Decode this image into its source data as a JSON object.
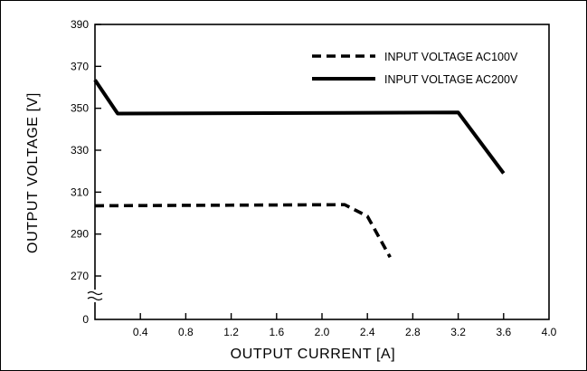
{
  "chart_data": {
    "type": "line",
    "xlabel": "OUTPUT CURRENT [A]",
    "ylabel": "OUTPUT VOLTAGE [V]",
    "xlim": [
      0,
      4.0
    ],
    "ylim": [
      260,
      390
    ],
    "x_ticks": [
      "0.4",
      "0.8",
      "1.2",
      "1.6",
      "2.0",
      "2.4",
      "2.8",
      "3.2",
      "3.6",
      "4.0"
    ],
    "y_ticks": [
      "390",
      "370",
      "350",
      "330",
      "310",
      "290",
      "270"
    ],
    "y_origin_label": "0",
    "y_axis_break": true,
    "grid": false,
    "legend_position": "top-right",
    "series": [
      {
        "name": "INPUT VOLTAGE AC100V",
        "style": "dashed",
        "x": [
          0,
          2.2,
          2.4,
          2.6
        ],
        "y": [
          303.5,
          304,
          298.5,
          279
        ]
      },
      {
        "name": "INPUT VOLTAGE AC200V",
        "style": "solid",
        "x": [
          0,
          0.2,
          3.2,
          3.6
        ],
        "y": [
          363.5,
          347.5,
          348,
          319
        ]
      }
    ]
  }
}
